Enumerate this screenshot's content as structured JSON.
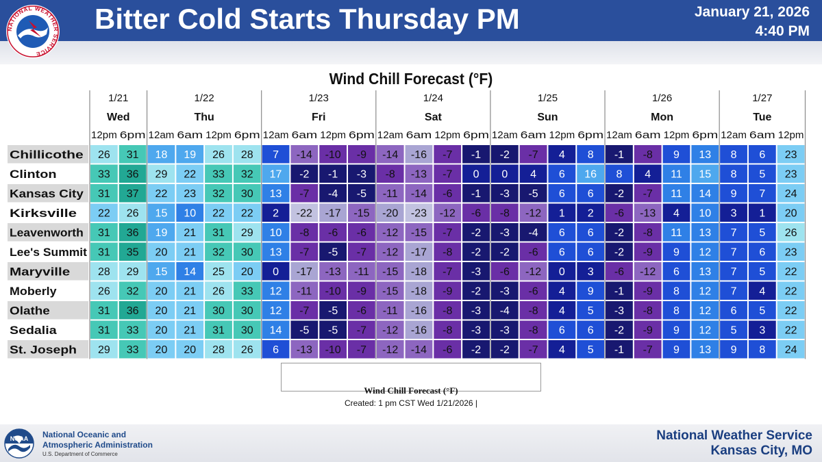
{
  "header": {
    "title": "Bitter Cold Starts Thursday PM",
    "date": "January 21, 2026",
    "time": "4:40 PM",
    "logo_text": "NATIONAL WEATHER SERVICE"
  },
  "chart_data": {
    "type": "table",
    "title": "Wind Chill Forecast (°F)",
    "days": [
      {
        "date": "1/21",
        "day": "Wed",
        "times": [
          "12pm",
          "6pm"
        ]
      },
      {
        "date": "1/22",
        "day": "Thu",
        "times": [
          "12am",
          "6am",
          "12pm",
          "6pm"
        ]
      },
      {
        "date": "1/23",
        "day": "Fri",
        "times": [
          "12am",
          "6am",
          "12pm",
          "6pm"
        ]
      },
      {
        "date": "1/24",
        "day": "Sat",
        "times": [
          "12am",
          "6am",
          "12pm",
          "6pm"
        ]
      },
      {
        "date": "1/25",
        "day": "Sun",
        "times": [
          "12am",
          "6am",
          "12pm",
          "6pm"
        ]
      },
      {
        "date": "1/26",
        "day": "Mon",
        "times": [
          "12am",
          "6am",
          "12pm",
          "6pm"
        ]
      },
      {
        "date": "1/27",
        "day": "Tue",
        "times": [
          "12am",
          "6am",
          "12pm"
        ]
      }
    ],
    "rows": [
      {
        "location": "Chillicothe",
        "values": [
          26,
          31,
          18,
          19,
          26,
          28,
          7,
          -14,
          -10,
          -9,
          -14,
          -16,
          -7,
          -1,
          -2,
          -7,
          4,
          8,
          -1,
          -8,
          9,
          13,
          8,
          6,
          23
        ]
      },
      {
        "location": "Clinton",
        "values": [
          33,
          36,
          29,
          22,
          33,
          32,
          17,
          -2,
          -1,
          -3,
          -8,
          -13,
          -7,
          0,
          0,
          4,
          6,
          16,
          8,
          4,
          11,
          15,
          8,
          5,
          23
        ]
      },
      {
        "location": "Kansas City",
        "values": [
          31,
          37,
          22,
          23,
          32,
          30,
          13,
          -7,
          -4,
          -5,
          -11,
          -14,
          -6,
          -1,
          -3,
          -5,
          6,
          6,
          -2,
          -7,
          11,
          14,
          9,
          7,
          24
        ]
      },
      {
        "location": "Kirksville",
        "values": [
          22,
          26,
          15,
          10,
          22,
          22,
          2,
          -22,
          -17,
          -15,
          -20,
          -23,
          -12,
          -6,
          -8,
          -12,
          1,
          2,
          -6,
          -13,
          4,
          10,
          3,
          1,
          20
        ]
      },
      {
        "location": "Leavenworth",
        "values": [
          31,
          36,
          19,
          21,
          31,
          29,
          10,
          -8,
          -6,
          -6,
          -12,
          -15,
          -7,
          -2,
          -3,
          -4,
          6,
          6,
          -2,
          -8,
          11,
          13,
          7,
          5,
          26
        ]
      },
      {
        "location": "Lee's Summit",
        "values": [
          31,
          35,
          20,
          21,
          32,
          30,
          13,
          -7,
          -5,
          -7,
          -12,
          -17,
          -8,
          -2,
          -2,
          -6,
          6,
          6,
          -2,
          -9,
          9,
          12,
          7,
          6,
          23
        ]
      },
      {
        "location": "Maryville",
        "values": [
          28,
          29,
          15,
          14,
          25,
          20,
          0,
          -17,
          -13,
          -11,
          -15,
          -18,
          -7,
          -3,
          -6,
          -12,
          0,
          3,
          -6,
          -12,
          6,
          13,
          7,
          5,
          22
        ]
      },
      {
        "location": "Moberly",
        "values": [
          26,
          32,
          20,
          21,
          26,
          33,
          12,
          -11,
          -10,
          -9,
          -15,
          -18,
          -9,
          -2,
          -3,
          -6,
          4,
          9,
          -1,
          -9,
          8,
          12,
          7,
          4,
          22
        ]
      },
      {
        "location": "Olathe",
        "values": [
          31,
          36,
          20,
          21,
          30,
          30,
          12,
          -7,
          -5,
          -6,
          -11,
          -16,
          -8,
          -3,
          -4,
          -8,
          4,
          5,
          -3,
          -8,
          8,
          12,
          6,
          5,
          22
        ]
      },
      {
        "location": "Sedalia",
        "values": [
          31,
          33,
          20,
          21,
          31,
          30,
          14,
          -5,
          -5,
          -7,
          -12,
          -16,
          -8,
          -3,
          -3,
          -8,
          6,
          6,
          -2,
          -9,
          9,
          12,
          5,
          3,
          22
        ]
      },
      {
        "location": "St. Joseph",
        "values": [
          29,
          33,
          20,
          20,
          28,
          26,
          6,
          -13,
          -10,
          -7,
          -12,
          -14,
          -6,
          -2,
          -2,
          -7,
          4,
          5,
          -1,
          -7,
          9,
          13,
          9,
          8,
          24
        ]
      }
    ],
    "colorbar": {
      "title": "Wind Chill Forecast (°F)",
      "ticks": [
        "−30",
        "−25",
        "−20",
        "−15",
        "−10",
        "−5",
        "0",
        "5",
        "10",
        "15",
        "20",
        "25",
        "30",
        "35",
        "40",
        "45"
      ],
      "bins": [
        {
          "min": -35,
          "max": -30,
          "color": "#f0f0f8"
        },
        {
          "min": -30,
          "max": -25,
          "color": "#dcdcec"
        },
        {
          "min": -25,
          "max": -20,
          "color": "#c2c2e0"
        },
        {
          "min": -20,
          "max": -15,
          "color": "#a9a5d3"
        },
        {
          "min": -15,
          "max": -10,
          "color": "#8d66c0"
        },
        {
          "min": -10,
          "max": -5,
          "color": "#6a2fa6"
        },
        {
          "min": -5,
          "max": 0,
          "color": "#181870"
        },
        {
          "min": 0,
          "max": 5,
          "color": "#141f96"
        },
        {
          "min": 5,
          "max": 10,
          "color": "#1f4fd6"
        },
        {
          "min": 10,
          "max": 15,
          "color": "#2f80e6"
        },
        {
          "min": 15,
          "max": 20,
          "color": "#4ea8ee"
        },
        {
          "min": 20,
          "max": 25,
          "color": "#7ccdf4"
        },
        {
          "min": 25,
          "max": 30,
          "color": "#9ee3ef"
        },
        {
          "min": 30,
          "max": 35,
          "color": "#46c8b6"
        },
        {
          "min": 35,
          "max": 40,
          "color": "#22a894"
        },
        {
          "min": 40,
          "max": 45,
          "color": "#117f70"
        },
        {
          "min": 45,
          "max": 50,
          "color": "#075a50"
        }
      ]
    },
    "created": "Created: 1 pm CST Wed 1/21/2026  |"
  },
  "footer": {
    "agency_line1": "National Oceanic and",
    "agency_line2": "Atmospheric Administration",
    "department": "U.S. Department of Commerce",
    "logo_text": "NOAA",
    "office_line1": "National Weather Service",
    "office_line2": "Kansas City, MO"
  }
}
